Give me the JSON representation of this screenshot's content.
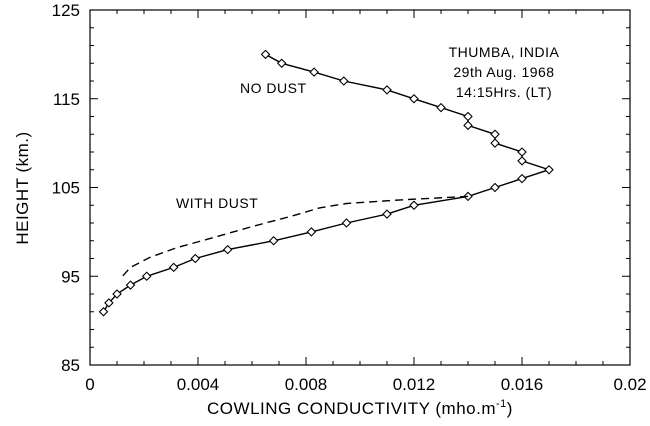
{
  "chart_data": {
    "type": "line",
    "xlabel_main": "COWLING CONDUCTIVITY (mho.m",
    "xlabel_sup": "-1",
    "xlabel_end": ")",
    "ylabel": "HEIGHT (km.)",
    "xlim": [
      0,
      0.02
    ],
    "ylim": [
      85,
      125
    ],
    "x_ticks": [
      0,
      0.004,
      0.008,
      0.012,
      0.016,
      0.02
    ],
    "x_tick_labels": [
      "0",
      "0.004",
      "0.008",
      "0.012",
      "0.016",
      "0.02"
    ],
    "y_ticks": [
      85,
      95,
      105,
      115,
      125
    ],
    "y_tick_labels": [
      "85",
      "95",
      "105",
      "115",
      "125"
    ],
    "grid": false,
    "annotation_lines": [
      "THUMBA, INDIA",
      "29th Aug. 1968",
      "14:15Hrs. (LT)"
    ],
    "series": [
      {
        "name": "NO DUST",
        "style": "solid",
        "marker": "diamond",
        "x": [
          0.0065,
          0.0071,
          0.0083,
          0.0094,
          0.011,
          0.012,
          0.013,
          0.014,
          0.014,
          0.015,
          0.015,
          0.016,
          0.016,
          0.017,
          0.016,
          0.015,
          0.014,
          0.012,
          0.011,
          0.0095,
          0.0082,
          0.0068,
          0.0051,
          0.0039,
          0.0031,
          0.0021,
          0.0015,
          0.001,
          0.0007,
          0.0005
        ],
        "y": [
          120,
          119,
          118,
          117,
          116,
          115,
          114,
          113,
          112,
          111,
          110,
          109,
          108,
          107,
          106,
          105,
          104,
          103,
          102,
          101,
          100,
          99,
          98,
          97,
          96,
          95,
          94,
          93,
          92,
          91
        ]
      },
      {
        "name": "WITH DUST",
        "style": "dashed",
        "marker": "none",
        "x": [
          0.014,
          0.0115,
          0.0095,
          0.0085,
          0.0075,
          0.006,
          0.0045,
          0.0032,
          0.0022,
          0.0015,
          0.0012
        ],
        "y": [
          104,
          103.6,
          103.2,
          102.7,
          101.8,
          100.6,
          99.3,
          98.2,
          97.1,
          96.0,
          95.0
        ]
      }
    ],
    "series_label_positions": [
      "top-center",
      "middle-left"
    ]
  }
}
